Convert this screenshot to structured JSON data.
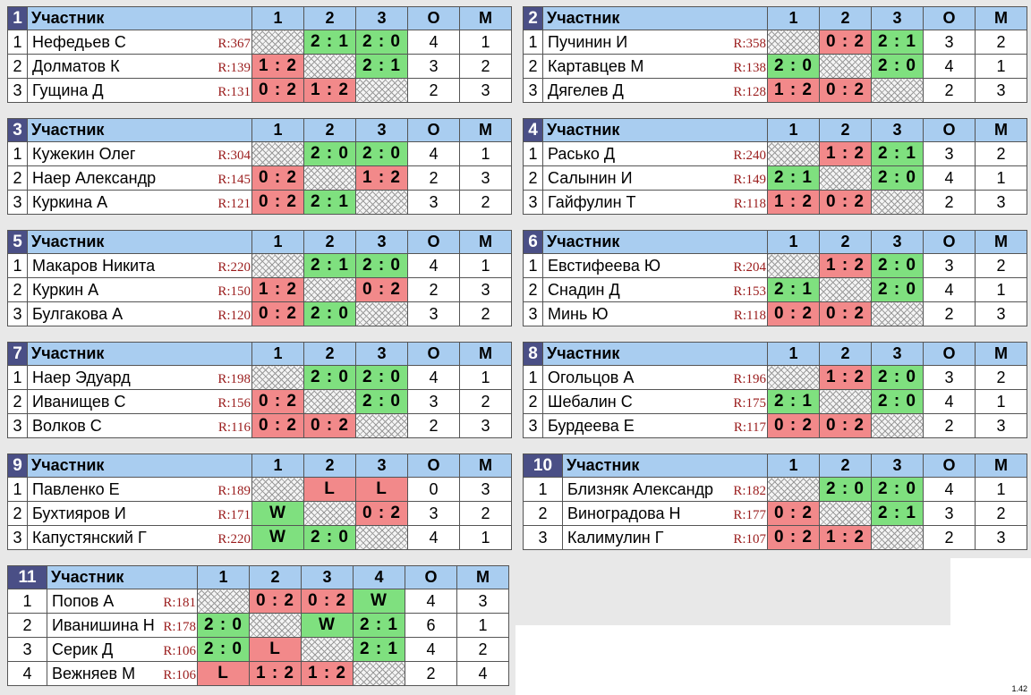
{
  "header": {
    "participant": "Участник",
    "points": "О",
    "place": "М"
  },
  "version": "1.42",
  "groups": [
    {
      "num": "1",
      "cols": [
        "1",
        "2",
        "3"
      ],
      "rows": [
        {
          "idx": "1",
          "name": "Нефедьев С",
          "rating": "R:367",
          "results": [
            "",
            "2 : 1",
            "2 : 0"
          ],
          "points": "4",
          "place": "1"
        },
        {
          "idx": "2",
          "name": "Долматов К",
          "rating": "R:139",
          "results": [
            "1 : 2",
            "",
            "2 : 1"
          ],
          "points": "3",
          "place": "2"
        },
        {
          "idx": "3",
          "name": "Гущина Д",
          "rating": "R:131",
          "results": [
            "0 : 2",
            "1 : 2",
            ""
          ],
          "points": "2",
          "place": "3"
        }
      ]
    },
    {
      "num": "2",
      "cols": [
        "1",
        "2",
        "3"
      ],
      "rows": [
        {
          "idx": "1",
          "name": "Пучинин И",
          "rating": "R:358",
          "results": [
            "",
            "0 : 2",
            "2 : 1"
          ],
          "points": "3",
          "place": "2"
        },
        {
          "idx": "2",
          "name": "Картавцев М",
          "rating": "R:138",
          "results": [
            "2 : 0",
            "",
            "2 : 0"
          ],
          "points": "4",
          "place": "1"
        },
        {
          "idx": "3",
          "name": "Дягелев Д",
          "rating": "R:128",
          "results": [
            "1 : 2",
            "0 : 2",
            ""
          ],
          "points": "2",
          "place": "3"
        }
      ]
    },
    {
      "num": "3",
      "cols": [
        "1",
        "2",
        "3"
      ],
      "rows": [
        {
          "idx": "1",
          "name": "Кужекин Олег",
          "rating": "R:304",
          "results": [
            "",
            "2 : 0",
            "2 : 0"
          ],
          "points": "4",
          "place": "1"
        },
        {
          "idx": "2",
          "name": "Наер Александр",
          "rating": "R:145",
          "results": [
            "0 : 2",
            "",
            "1 : 2"
          ],
          "points": "2",
          "place": "3"
        },
        {
          "idx": "3",
          "name": "Куркина А",
          "rating": "R:121",
          "results": [
            "0 : 2",
            "2 : 1",
            ""
          ],
          "points": "3",
          "place": "2"
        }
      ]
    },
    {
      "num": "4",
      "cols": [
        "1",
        "2",
        "3"
      ],
      "rows": [
        {
          "idx": "1",
          "name": "Расько Д",
          "rating": "R:240",
          "results": [
            "",
            "1 : 2",
            "2 : 1"
          ],
          "points": "3",
          "place": "2"
        },
        {
          "idx": "2",
          "name": "Салынин И",
          "rating": "R:149",
          "results": [
            "2 : 1",
            "",
            "2 : 0"
          ],
          "points": "4",
          "place": "1"
        },
        {
          "idx": "3",
          "name": "Гайфулин Т",
          "rating": "R:118",
          "results": [
            "1 : 2",
            "0 : 2",
            ""
          ],
          "points": "2",
          "place": "3"
        }
      ]
    },
    {
      "num": "5",
      "cols": [
        "1",
        "2",
        "3"
      ],
      "rows": [
        {
          "idx": "1",
          "name": "Макаров Никита",
          "rating": "R:220",
          "results": [
            "",
            "2 : 1",
            "2 : 0"
          ],
          "points": "4",
          "place": "1"
        },
        {
          "idx": "2",
          "name": "Куркин А",
          "rating": "R:150",
          "results": [
            "1 : 2",
            "",
            "0 : 2"
          ],
          "points": "2",
          "place": "3"
        },
        {
          "idx": "3",
          "name": "Булгакова А",
          "rating": "R:120",
          "results": [
            "0 : 2",
            "2 : 0",
            ""
          ],
          "points": "3",
          "place": "2"
        }
      ]
    },
    {
      "num": "6",
      "cols": [
        "1",
        "2",
        "3"
      ],
      "rows": [
        {
          "idx": "1",
          "name": "Евстифеева Ю",
          "rating": "R:204",
          "results": [
            "",
            "1 : 2",
            "2 : 0"
          ],
          "points": "3",
          "place": "2"
        },
        {
          "idx": "2",
          "name": "Снадин Д",
          "rating": "R:153",
          "results": [
            "2 : 1",
            "",
            "2 : 0"
          ],
          "points": "4",
          "place": "1"
        },
        {
          "idx": "3",
          "name": "Минь Ю",
          "rating": "R:118",
          "results": [
            "0 : 2",
            "0 : 2",
            ""
          ],
          "points": "2",
          "place": "3"
        }
      ]
    },
    {
      "num": "7",
      "cols": [
        "1",
        "2",
        "3"
      ],
      "rows": [
        {
          "idx": "1",
          "name": "Наер Эдуард",
          "rating": "R:198",
          "results": [
            "",
            "2 : 0",
            "2 : 0"
          ],
          "points": "4",
          "place": "1"
        },
        {
          "idx": "2",
          "name": "Иванищев С",
          "rating": "R:156",
          "results": [
            "0 : 2",
            "",
            "2 : 0"
          ],
          "points": "3",
          "place": "2"
        },
        {
          "idx": "3",
          "name": "Волков С",
          "rating": "R:116",
          "results": [
            "0 : 2",
            "0 : 2",
            ""
          ],
          "points": "2",
          "place": "3"
        }
      ]
    },
    {
      "num": "8",
      "cols": [
        "1",
        "2",
        "3"
      ],
      "rows": [
        {
          "idx": "1",
          "name": "Огольцов А",
          "rating": "R:196",
          "results": [
            "",
            "1 : 2",
            "2 : 0"
          ],
          "points": "3",
          "place": "2"
        },
        {
          "idx": "2",
          "name": "Шебалин С",
          "rating": "R:175",
          "results": [
            "2 : 1",
            "",
            "2 : 0"
          ],
          "points": "4",
          "place": "1"
        },
        {
          "idx": "3",
          "name": "Бурдеева Е",
          "rating": "R:117",
          "results": [
            "0 : 2",
            "0 : 2",
            ""
          ],
          "points": "2",
          "place": "3"
        }
      ]
    },
    {
      "num": "9",
      "cols": [
        "1",
        "2",
        "3"
      ],
      "rows": [
        {
          "idx": "1",
          "name": "Павленко Е",
          "rating": "R:189",
          "results": [
            "",
            "L",
            "L"
          ],
          "points": "0",
          "place": "3"
        },
        {
          "idx": "2",
          "name": "Бухтияров И",
          "rating": "R:171",
          "results": [
            "W",
            "",
            "0 : 2"
          ],
          "points": "3",
          "place": "2"
        },
        {
          "idx": "3",
          "name": "Капустянский Г",
          "rating": "R:220",
          "results": [
            "W",
            "2 : 0",
            ""
          ],
          "points": "4",
          "place": "1"
        }
      ]
    },
    {
      "num": "10",
      "cols": [
        "1",
        "2",
        "3"
      ],
      "rows": [
        {
          "idx": "1",
          "name": "Близняк Александр",
          "rating": "R:182",
          "results": [
            "",
            "2 : 0",
            "2 : 0"
          ],
          "points": "4",
          "place": "1"
        },
        {
          "idx": "2",
          "name": "Виноградова Н",
          "rating": "R:177",
          "results": [
            "0 : 2",
            "",
            "2 : 1"
          ],
          "points": "3",
          "place": "2"
        },
        {
          "idx": "3",
          "name": "Калимулин Г",
          "rating": "R:107",
          "results": [
            "0 : 2",
            "1 : 2",
            ""
          ],
          "points": "2",
          "place": "3"
        }
      ]
    },
    {
      "num": "11",
      "cols": [
        "1",
        "2",
        "3",
        "4"
      ],
      "rows": [
        {
          "idx": "1",
          "name": "Попов А",
          "rating": "R:181",
          "results": [
            "",
            "0 : 2",
            "0 : 2",
            "W"
          ],
          "points": "4",
          "place": "3"
        },
        {
          "idx": "2",
          "name": "Иванишина Н",
          "rating": "R:178",
          "results": [
            "2 : 0",
            "",
            "W",
            "2 : 1"
          ],
          "points": "6",
          "place": "1"
        },
        {
          "idx": "3",
          "name": "Серик Д",
          "rating": "R:106",
          "results": [
            "2 : 0",
            "L",
            "",
            "2 : 1"
          ],
          "points": "4",
          "place": "2"
        },
        {
          "idx": "4",
          "name": "Вежняев М",
          "rating": "R:106",
          "results": [
            "L",
            "1 : 2",
            "1 : 2",
            ""
          ],
          "points": "2",
          "place": "4"
        }
      ]
    }
  ]
}
